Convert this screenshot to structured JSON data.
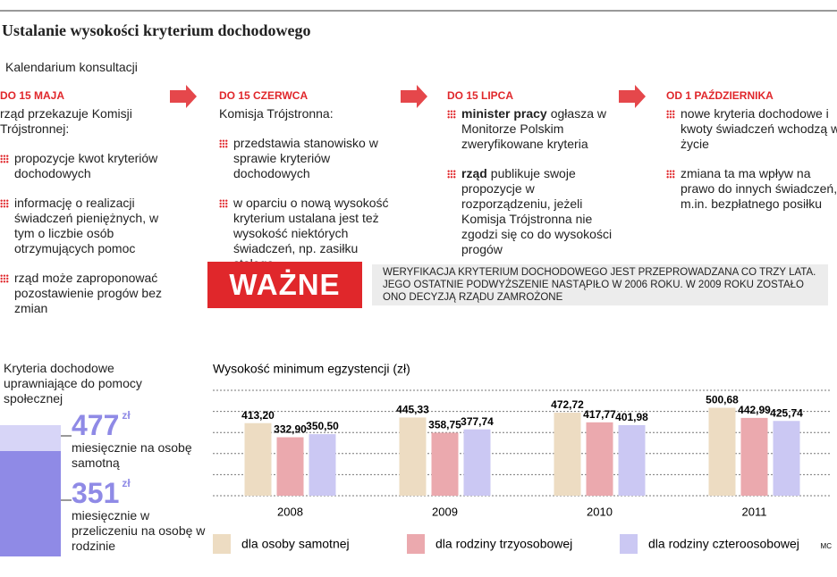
{
  "header": {
    "title": "Ustalanie wysokości kryterium dochodowego",
    "subtitle": "Kalendarium konsultacji"
  },
  "timeline": [
    {
      "date": "DO 15 MAJA",
      "intro": "rząd przekazuje Komisji Trójstronnej:",
      "items": [
        {
          "text": "propozycje kwot kryteriów dochodowych"
        },
        {
          "text": "informację o realizacji świadczeń pieniężnych, w tym o liczbie osób otrzymujących pomoc"
        },
        {
          "text": "rząd może zaproponować pozostawienie progów bez zmian"
        }
      ]
    },
    {
      "date": "DO 15 CZERWCA",
      "intro": "Komisja Trójstronna:",
      "items": [
        {
          "text": "przedstawia stanowisko w sprawie kryteriów dochodowych"
        },
        {
          "text": "w oparciu o nową wysokość kryterium ustalana jest też wysokość niektórych świadczeń, np. zasiłku stałego"
        }
      ]
    },
    {
      "date": "DO 15 LIPCA",
      "items": [
        {
          "bold": "minister pracy",
          "text": "ogłasza w Monitorze Polskim zweryfikowane kryteria"
        },
        {
          "bold": "rząd",
          "text": "publikuje swoje propozycje w rozporządzeniu, jeżeli Komisja Trójstronna nie zgodzi się co do wysokości progów"
        }
      ]
    },
    {
      "date": "OD 1 PAŹDZIERNIKA",
      "items": [
        {
          "text": "nowe kryteria dochodowe i kwoty świadczeń wchodzą w życie"
        },
        {
          "text": "zmiana ta ma wpływ na prawo do innych świadczeń, m.in. bezpłatnego posiłku"
        }
      ]
    }
  ],
  "notice": {
    "label": "WAŻNE",
    "text": "WERYFIKACJA KRYTERIUM DOCHODOWEGO JEST PRZEPROWADZANA CO TRZY LATA. JEGO OSTATNIE PODWYŻSZENIE NASTĄPIŁO W 2006 ROKU. W 2009 ROKU ZOSTAŁO ONO DECYZJĄ RZĄDU ZAMROŻONE"
  },
  "criteria": {
    "title": "Kryteria dochodowe uprawniające do pomocy społecznej",
    "items": [
      {
        "amount": 477,
        "unit": "zł",
        "desc": "miesięcznie na osobę samotną"
      },
      {
        "amount": 351,
        "unit": "zł",
        "desc": "miesięcznie w przeliczeniu na osobę w rodzinie"
      }
    ]
  },
  "chart_data": {
    "type": "bar",
    "title": "Wysokość minimum egzystencji (zł)",
    "categories": [
      "2008",
      "2009",
      "2010",
      "2011"
    ],
    "series": [
      {
        "name": "dla osoby samotnej",
        "color": "#eddcc2",
        "values": [
          413.2,
          445.33,
          472.72,
          500.68
        ],
        "value_labels": [
          "413,20",
          "445,33",
          "472,72",
          "500,68"
        ]
      },
      {
        "name": "dla rodziny trzyosobowej",
        "color": "#eba9ae",
        "values": [
          332.9,
          358.75,
          417.77,
          442.99
        ],
        "value_labels": [
          "332,90",
          "358,75",
          "417,77",
          "442,99"
        ]
      },
      {
        "name": "dla rodziny czteroosobowej",
        "color": "#cbc8f3",
        "values": [
          350.5,
          377.74,
          401.98,
          425.74
        ],
        "value_labels": [
          "350,50",
          "377,74",
          "401,98",
          "425,74"
        ]
      }
    ],
    "ylim": [
      0,
      600
    ],
    "grid": true
  },
  "credit": "MC"
}
